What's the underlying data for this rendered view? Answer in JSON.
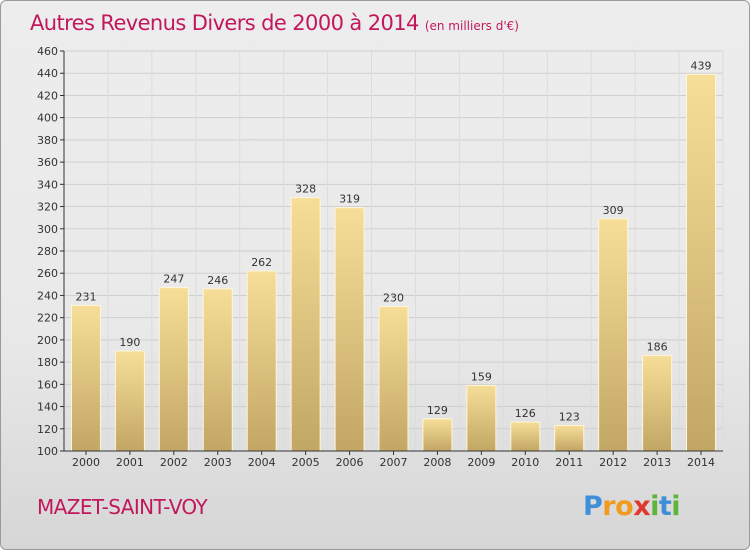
{
  "title": "Autres Revenus Divers de 2000 à 2014",
  "title_unit": "(en milliers d'€)",
  "commune": "MAZET-SAINT-VOY",
  "logo": {
    "letters": [
      "P",
      "r",
      "o",
      "x",
      "i",
      "t",
      "i"
    ],
    "colors": [
      "#3f8fd8",
      "#f29a1e",
      "#f29a1e",
      "#e03a2e",
      "#5fb43a",
      "#3f8fd8",
      "#5fb43a"
    ]
  },
  "colors": {
    "accent": "#c2185b",
    "bar_light": "#f5dc95",
    "bar_dark": "#c3a866",
    "axis": "#333333"
  },
  "chart_data": {
    "type": "bar",
    "title": "Autres Revenus Divers de 2000 à 2014",
    "xlabel": "",
    "ylabel": "",
    "categories": [
      "2000",
      "2001",
      "2002",
      "2003",
      "2004",
      "2005",
      "2006",
      "2007",
      "2008",
      "2009",
      "2010",
      "2011",
      "2012",
      "2013",
      "2014"
    ],
    "values": [
      231,
      190,
      247,
      246,
      262,
      328,
      319,
      230,
      129,
      159,
      126,
      123,
      309,
      186,
      439
    ],
    "ylim": [
      100,
      460
    ],
    "yticks": [
      100,
      120,
      140,
      160,
      180,
      200,
      220,
      240,
      260,
      280,
      300,
      320,
      340,
      360,
      380,
      400,
      420,
      440,
      460
    ],
    "grid": true,
    "legend": "none"
  }
}
